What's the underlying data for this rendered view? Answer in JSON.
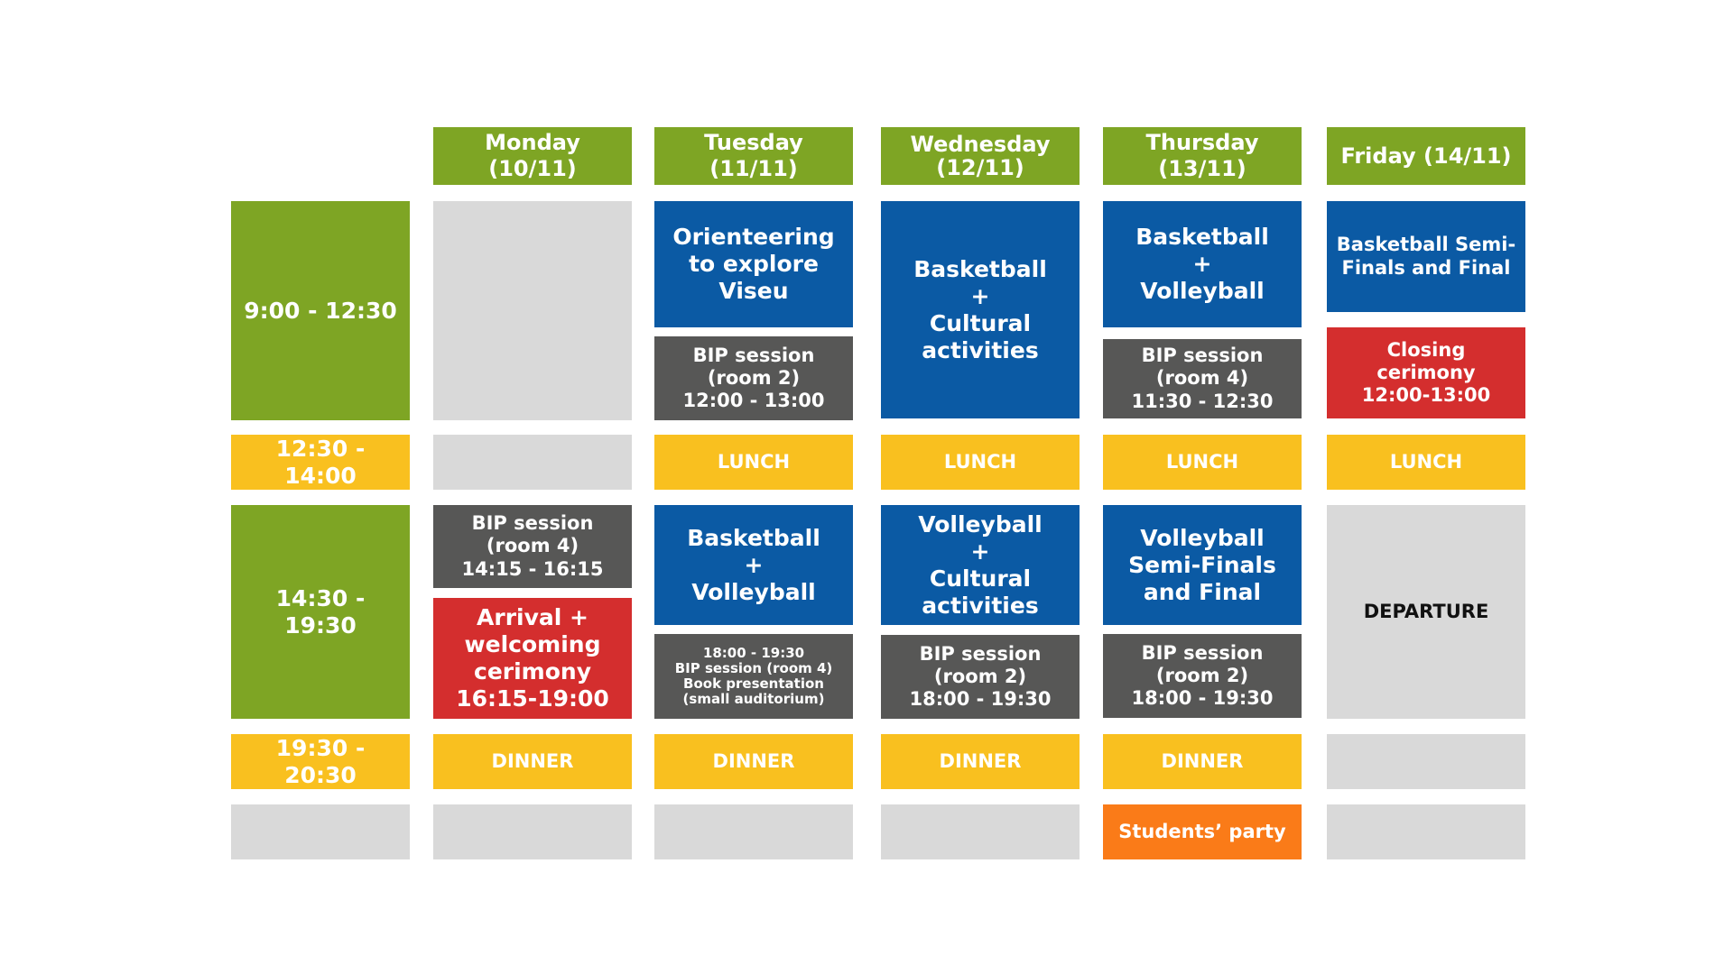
{
  "header": {
    "days": [
      "Monday (10/11)",
      "Tuesday (11/11)",
      "Wednesday\n(12/11)",
      "Thursday (13/11)",
      "Friday (14/11)"
    ]
  },
  "times": [
    "9:00 - 12:30",
    "12:30 - 14:00",
    "14:30 - 19:30",
    "19:30 - 20:30"
  ],
  "monday": {
    "bip": "BIP session\n(room 4)\n14:15 - 16:15",
    "arrival": "Arrival +\nwelcoming\ncerimony\n16:15-19:00",
    "dinner": "DINNER"
  },
  "tuesday": {
    "orienteering": "Orienteering\nto explore\nViseu",
    "bip_morning": "BIP session\n(room 2)\n12:00 - 13:00",
    "lunch": "LUNCH",
    "sports": "Basketball\n+\nVolleyball",
    "evening": "18:00 - 19:30\nBIP session (room 4)\nBook presentation\n(small auditorium)",
    "dinner": "DINNER"
  },
  "wednesday": {
    "morning": "Basketball\n+\nCultural\nactivities",
    "lunch": "LUNCH",
    "afternoon": "Volleyball\n+\nCultural\nactivities",
    "bip": "BIP session\n(room 2)\n18:00 - 19:30",
    "dinner": "DINNER"
  },
  "thursday": {
    "sports": "Basketball\n+\nVolleyball",
    "bip_morning": "BIP session\n(room 4)\n11:30 - 12:30",
    "lunch": "LUNCH",
    "volley_final": "Volleyball\nSemi-Finals\nand Final",
    "bip": "BIP session\n(room 2)\n18:00 - 19:30",
    "dinner": "DINNER",
    "party": "Students’ party"
  },
  "friday": {
    "basket_final": "Basketball Semi-\nFinals and Final",
    "closing": "Closing\ncerimony\n12:00-13:00",
    "lunch": "LUNCH",
    "departure": "DEPARTURE"
  },
  "colors": {
    "green": "#7ea524",
    "blue": "#0b5aa4",
    "dark_grey": "#575756",
    "red": "#d42e2e",
    "yellow": "#f9c01f",
    "light_grey": "#d9d9d9",
    "orange": "#fa7b18"
  }
}
